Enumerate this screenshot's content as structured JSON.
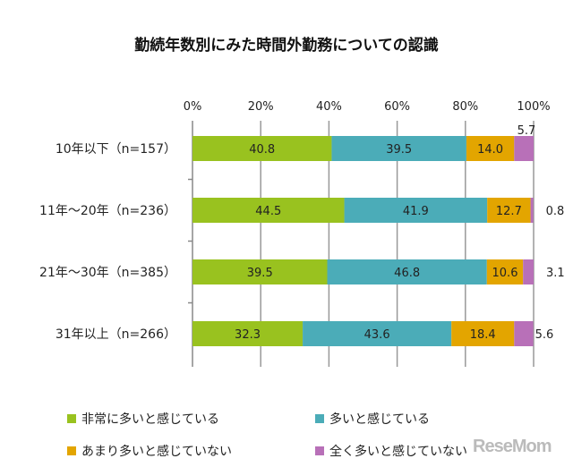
{
  "chart_data": {
    "type": "bar",
    "orientation": "horizontal",
    "stacked": "percent",
    "title": "勤続年数別にみた時間外勤務についての認識",
    "categories": [
      "10年以下（n=157）",
      "11年～20年（n=236）",
      "21年～30年（n=385）",
      "31年以上（n=266）"
    ],
    "series": [
      {
        "name": "非常に多いと感じている",
        "color": "#99c21f",
        "values": [
          40.8,
          44.5,
          39.5,
          32.3
        ]
      },
      {
        "name": "多いと感じている",
        "color": "#4bacb8",
        "values": [
          39.5,
          41.9,
          46.8,
          43.6
        ]
      },
      {
        "name": "あまり多いと感じていない",
        "color": "#e3a500",
        "values": [
          14.0,
          12.7,
          10.6,
          18.4
        ]
      },
      {
        "name": "全く多いと感じていない",
        "color": "#b870b8",
        "values": [
          5.7,
          0.8,
          3.1,
          5.6
        ]
      }
    ],
    "value_labels": [
      [
        "40.8",
        "39.5",
        "14.0",
        "5.7"
      ],
      [
        "44.5",
        "41.9",
        "12.7",
        "0.8"
      ],
      [
        "39.5",
        "46.8",
        "10.6",
        "3.1"
      ],
      [
        "32.3",
        "43.6",
        "18.4",
        "5.6"
      ]
    ],
    "xticks": [
      "0%",
      "20%",
      "40%",
      "60%",
      "80%",
      "100%"
    ],
    "xlim": [
      0,
      100
    ],
    "axis_position": "top",
    "grid": true,
    "legend": "bottom"
  },
  "watermark": "ReseMom"
}
